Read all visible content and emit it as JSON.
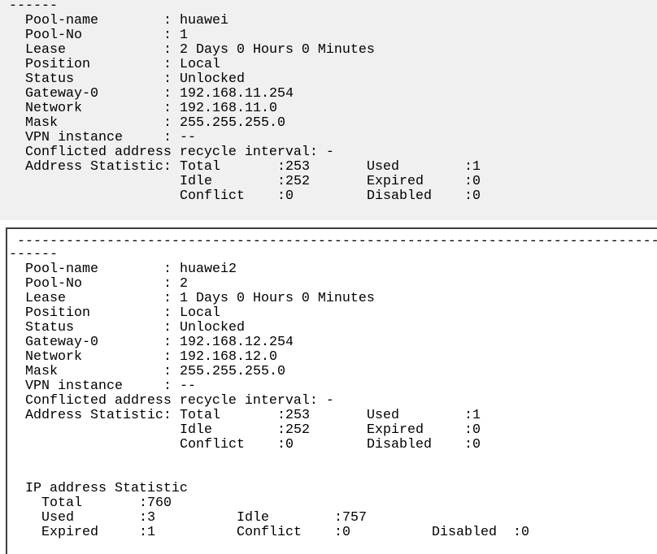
{
  "labels": {
    "pool_name": "Pool-name",
    "pool_no": "Pool-No",
    "lease": "Lease",
    "position": "Position",
    "status": "Status",
    "gateway": "Gateway-0",
    "network": "Network",
    "mask": "Mask",
    "vpn": "VPN instance",
    "conflicted": "Conflicted address recycle interval: -",
    "address_statistic": "Address Statistic:",
    "colon": ":",
    "total": "Total",
    "idle": "Idle",
    "conflict": "Conflict",
    "used": "Used",
    "expired": "Expired",
    "disabled": "Disabled"
  },
  "short_divider": "------",
  "long_divider": "---------------------------------------------------------------------------------",
  "pools": [
    {
      "pool_name": "huawei",
      "pool_no": "1",
      "lease": "2 Days 0 Hours 0 Minutes",
      "position": "Local",
      "status": "Unlocked",
      "gateway": "192.168.11.254",
      "network": "192.168.11.0",
      "mask": "255.255.255.0",
      "vpn": "--",
      "total": ":253",
      "used": ":1",
      "idle": ":252",
      "expired": ":0",
      "conflict": ":0",
      "disabled": ":0"
    },
    {
      "pool_name": "huawei2",
      "pool_no": "2",
      "lease": "1 Days 0 Hours 0 Minutes",
      "position": "Local",
      "status": "Unlocked",
      "gateway": "192.168.12.254",
      "network": "192.168.12.0",
      "mask": "255.255.255.0",
      "vpn": "--",
      "total": ":253",
      "used": ":1",
      "idle": ":252",
      "expired": ":0",
      "conflict": ":0",
      "disabled": ":0"
    }
  ],
  "ip_statistic": {
    "title": "IP address Statistic",
    "total": ":760",
    "used": ":3",
    "idle": ":757",
    "expired": ":1",
    "conflict": ":0",
    "disabled": ":0"
  }
}
